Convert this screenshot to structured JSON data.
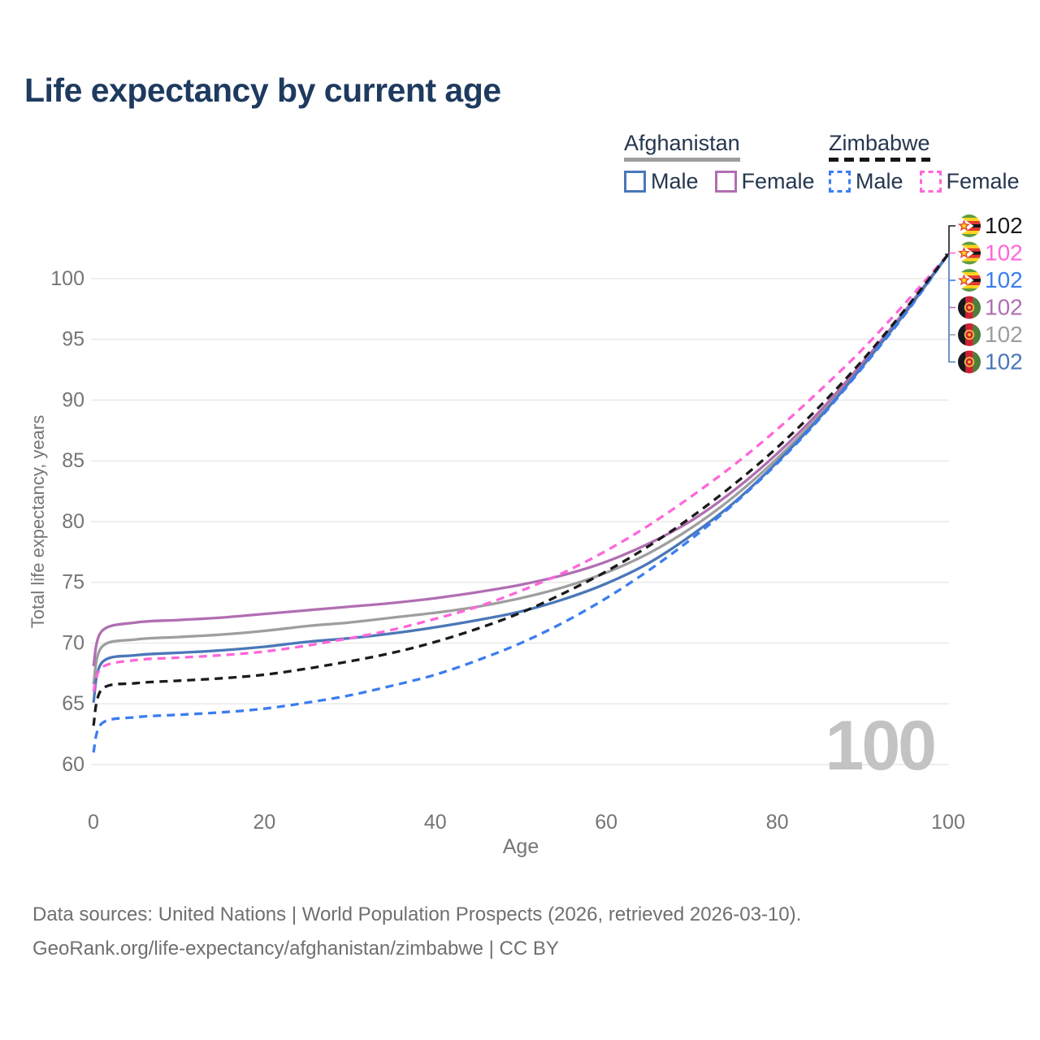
{
  "title": "Life expectancy by current age",
  "legend": {
    "groups": [
      {
        "label": "Afghanistan",
        "underline_style": "solid",
        "underline_color": "#9e9e9e",
        "items": [
          {
            "label": "Male",
            "color": "#4a77b8",
            "dash": false
          },
          {
            "label": "Female",
            "color": "#b06fb2",
            "dash": false
          }
        ]
      },
      {
        "label": "Zimbabwe",
        "underline_style": "dashed",
        "underline_color": "#161616",
        "items": [
          {
            "label": "Male",
            "color": "#3b7df0",
            "dash": true
          },
          {
            "label": "Female",
            "color": "#ff66d9",
            "dash": true
          }
        ]
      }
    ]
  },
  "chart_data": {
    "type": "line",
    "title": "Life expectancy by current age",
    "xlabel": "Age",
    "ylabel": "Total life expectancy, years",
    "xlim": [
      0,
      100
    ],
    "ylim": [
      60,
      102
    ],
    "xticks": [
      0,
      20,
      40,
      60,
      80,
      100
    ],
    "yticks": [
      60,
      65,
      70,
      75,
      80,
      85,
      90,
      95,
      100
    ],
    "grid": "horizontal",
    "legend_position": "top-right",
    "watermark": "100",
    "x": [
      0,
      1,
      5,
      10,
      15,
      20,
      25,
      30,
      35,
      40,
      45,
      50,
      55,
      60,
      65,
      70,
      75,
      80,
      85,
      90,
      95,
      100
    ],
    "series": [
      {
        "id": "afghanistan-all",
        "name": "Afghanistan Both sexes",
        "color": "#9e9e9e",
        "dash": false,
        "values": [
          66.6,
          69.7,
          70.3,
          70.5,
          70.7,
          71.0,
          71.4,
          71.7,
          72.1,
          72.5,
          73.0,
          73.7,
          74.6,
          75.8,
          77.4,
          79.5,
          82.1,
          85.2,
          88.8,
          92.9,
          97.3,
          102
        ]
      },
      {
        "id": "afghanistan-female",
        "name": "Afghanistan Female",
        "color": "#b06fb2",
        "dash": false,
        "values": [
          68.1,
          71.0,
          71.7,
          71.9,
          72.1,
          72.4,
          72.7,
          73.0,
          73.3,
          73.7,
          74.2,
          74.8,
          75.6,
          76.7,
          78.2,
          80.1,
          82.6,
          85.6,
          89.1,
          93.1,
          97.4,
          102
        ]
      },
      {
        "id": "afghanistan-male",
        "name": "Afghanistan Male",
        "color": "#4a77b8",
        "dash": false,
        "values": [
          65.1,
          68.4,
          69.0,
          69.2,
          69.4,
          69.7,
          70.1,
          70.4,
          70.8,
          71.3,
          71.9,
          72.6,
          73.6,
          74.9,
          76.6,
          78.9,
          81.6,
          84.9,
          88.6,
          92.8,
          97.2,
          102
        ]
      },
      {
        "id": "zimbabwe-male",
        "name": "Zimbabwe Male",
        "color": "#3b7df0",
        "dash": true,
        "values": [
          61.0,
          63.4,
          63.9,
          64.1,
          64.3,
          64.6,
          65.1,
          65.7,
          66.5,
          67.4,
          68.6,
          70.0,
          71.7,
          73.7,
          76.0,
          78.6,
          81.5,
          84.8,
          88.5,
          92.7,
          97.1,
          102
        ]
      },
      {
        "id": "zimbabwe-female",
        "name": "Zimbabwe Female",
        "color": "#ff66d9",
        "dash": true,
        "values": [
          66.0,
          68.0,
          68.6,
          68.8,
          69.0,
          69.3,
          69.8,
          70.4,
          71.1,
          72.0,
          73.0,
          74.3,
          75.8,
          77.6,
          79.7,
          82.1,
          84.7,
          87.6,
          90.8,
          94.2,
          98.0,
          102
        ]
      },
      {
        "id": "zimbabwe-all",
        "name": "Zimbabwe Both sexes",
        "color": "#1a1a1a",
        "dash": true,
        "values": [
          63.2,
          66.2,
          66.7,
          66.9,
          67.1,
          67.4,
          67.9,
          68.5,
          69.2,
          70.1,
          71.2,
          72.5,
          74.1,
          75.9,
          78.0,
          80.4,
          83.1,
          86.1,
          89.5,
          93.3,
          97.5,
          102
        ]
      }
    ],
    "end_labels": [
      {
        "country": "zimbabwe",
        "icon": "zimbabwe-flag-icon",
        "value": "102",
        "color": "#1a1a1a"
      },
      {
        "country": "zimbabwe",
        "icon": "zimbabwe-flag-icon",
        "value": "102",
        "color": "#ff66d9"
      },
      {
        "country": "zimbabwe",
        "icon": "zimbabwe-flag-icon",
        "value": "102",
        "color": "#3b7df0"
      },
      {
        "country": "afghanistan",
        "icon": "afghanistan-flag-icon",
        "value": "102",
        "color": "#b06fb2"
      },
      {
        "country": "afghanistan",
        "icon": "afghanistan-flag-icon",
        "value": "102",
        "color": "#9e9e9e"
      },
      {
        "country": "afghanistan",
        "icon": "afghanistan-flag-icon",
        "value": "102",
        "color": "#4a77b8"
      }
    ],
    "flag_colors": {
      "zimbabwe": {
        "green": "#5e9c3f",
        "yellow": "#ffd520",
        "red": "#e03c31",
        "black": "#151515",
        "triangle": "#ffffff",
        "star": "#ffd520",
        "star_stroke": "#e03c31"
      },
      "afghanistan": {
        "black": "#17191c",
        "red": "#d11f33",
        "green": "#4e7e3b",
        "emblem": "#f3c03f"
      }
    }
  },
  "footer": {
    "line1": "Data sources: United Nations | World Population Prospects (2026, retrieved 2026-03-10).",
    "line2": "GeoRank.org/life-expectancy/afghanistan/zimbabwe | CC BY"
  }
}
